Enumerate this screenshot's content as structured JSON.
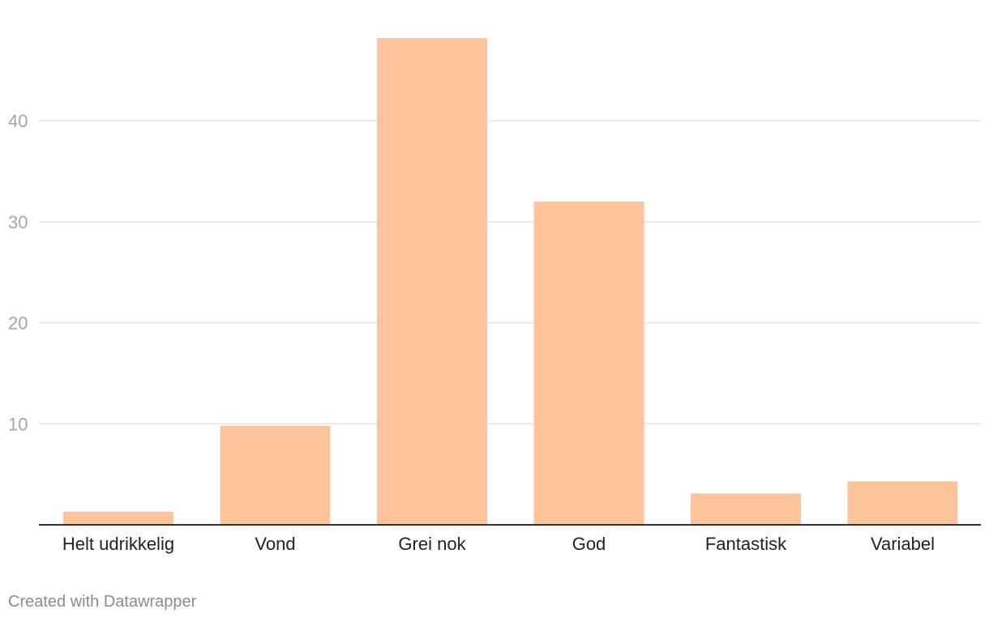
{
  "chart_data": {
    "type": "bar",
    "categories": [
      "Helt udrikkelig",
      "Vond",
      "Grei nok",
      "God",
      "Fantastisk",
      "Variabel"
    ],
    "values": [
      1.3,
      9.8,
      48.2,
      32.0,
      3.1,
      4.3
    ],
    "ylim": [
      0,
      48.2
    ],
    "yticks": [
      10,
      20,
      30,
      40
    ],
    "bar_color": "#fdc49c",
    "grid": true,
    "legend": "none"
  },
  "footer": {
    "credit": "Created with Datawrapper"
  }
}
